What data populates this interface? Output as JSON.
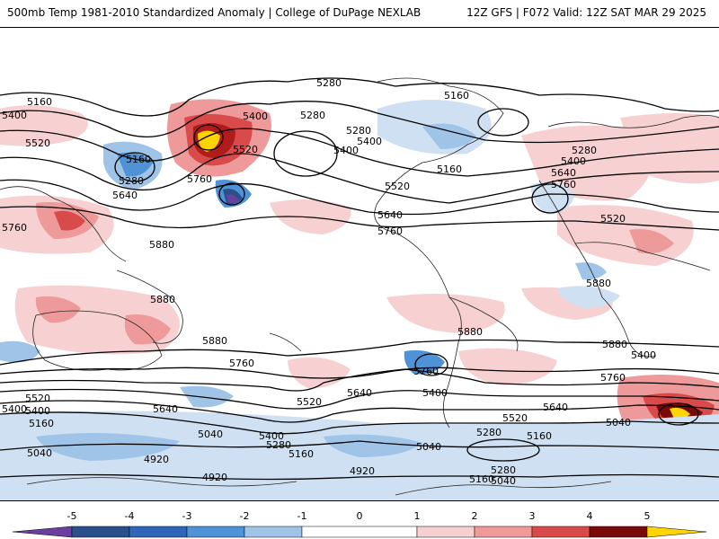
{
  "header": {
    "title_left": "500mb Temp 1981-2010 Standardized Anomaly | College of DuPage NEXLAB",
    "title_right": "12Z GFS | F072 Valid: 12Z SAT MAR 29 2025"
  },
  "colors": {
    "background": "#ffffff",
    "warm_1": "#f7d1d1",
    "warm_2": "#ee9a9a",
    "warm_3": "#d94a4a",
    "warm_4": "#b01c1c",
    "warm_5": "#7a0a0a",
    "hot_core": "#ffd400",
    "cool_1": "#cfe0f2",
    "cool_2": "#9fc4e8",
    "cool_3": "#4f92d6",
    "cool_4": "#2a4f8a",
    "cool_5": "#6a3fa0",
    "contour": "#000000",
    "coast": "#222222"
  },
  "legend": {
    "ticks": [
      "-5",
      "-4",
      "-3",
      "-2",
      "-1",
      "0",
      "1",
      "2",
      "3",
      "4",
      "5"
    ],
    "colors": [
      "#6a3fa0",
      "#2a4f8a",
      "#2f66b8",
      "#4f92d6",
      "#9fc4e8",
      "#ffffff",
      "#f7d1d1",
      "#ee9a9a",
      "#d94a4a",
      "#b01c1c",
      "#7a0a0a",
      "#ffd400"
    ]
  },
  "contour_labels": [
    "5280",
    "5160",
    "5160",
    "5400",
    "5520",
    "5160",
    "5280",
    "5400",
    "5640",
    "5760",
    "5280",
    "5400",
    "5520",
    "5280",
    "5400",
    "5520",
    "5160",
    "5280",
    "5400",
    "5640",
    "5760",
    "5520",
    "5640",
    "5760",
    "5880",
    "5880",
    "5880",
    "5880",
    "5880",
    "5880",
    "5760",
    "5760",
    "5760",
    "5640",
    "5520",
    "5400",
    "5640",
    "5520",
    "5400",
    "5280",
    "5160",
    "5520",
    "5400",
    "5160",
    "5040",
    "5400",
    "5280",
    "5160",
    "5040",
    "5280",
    "5160",
    "5040",
    "5040",
    "4920",
    "4920",
    "4920",
    "5040",
    "5400",
    "5760",
    "5640"
  ]
}
